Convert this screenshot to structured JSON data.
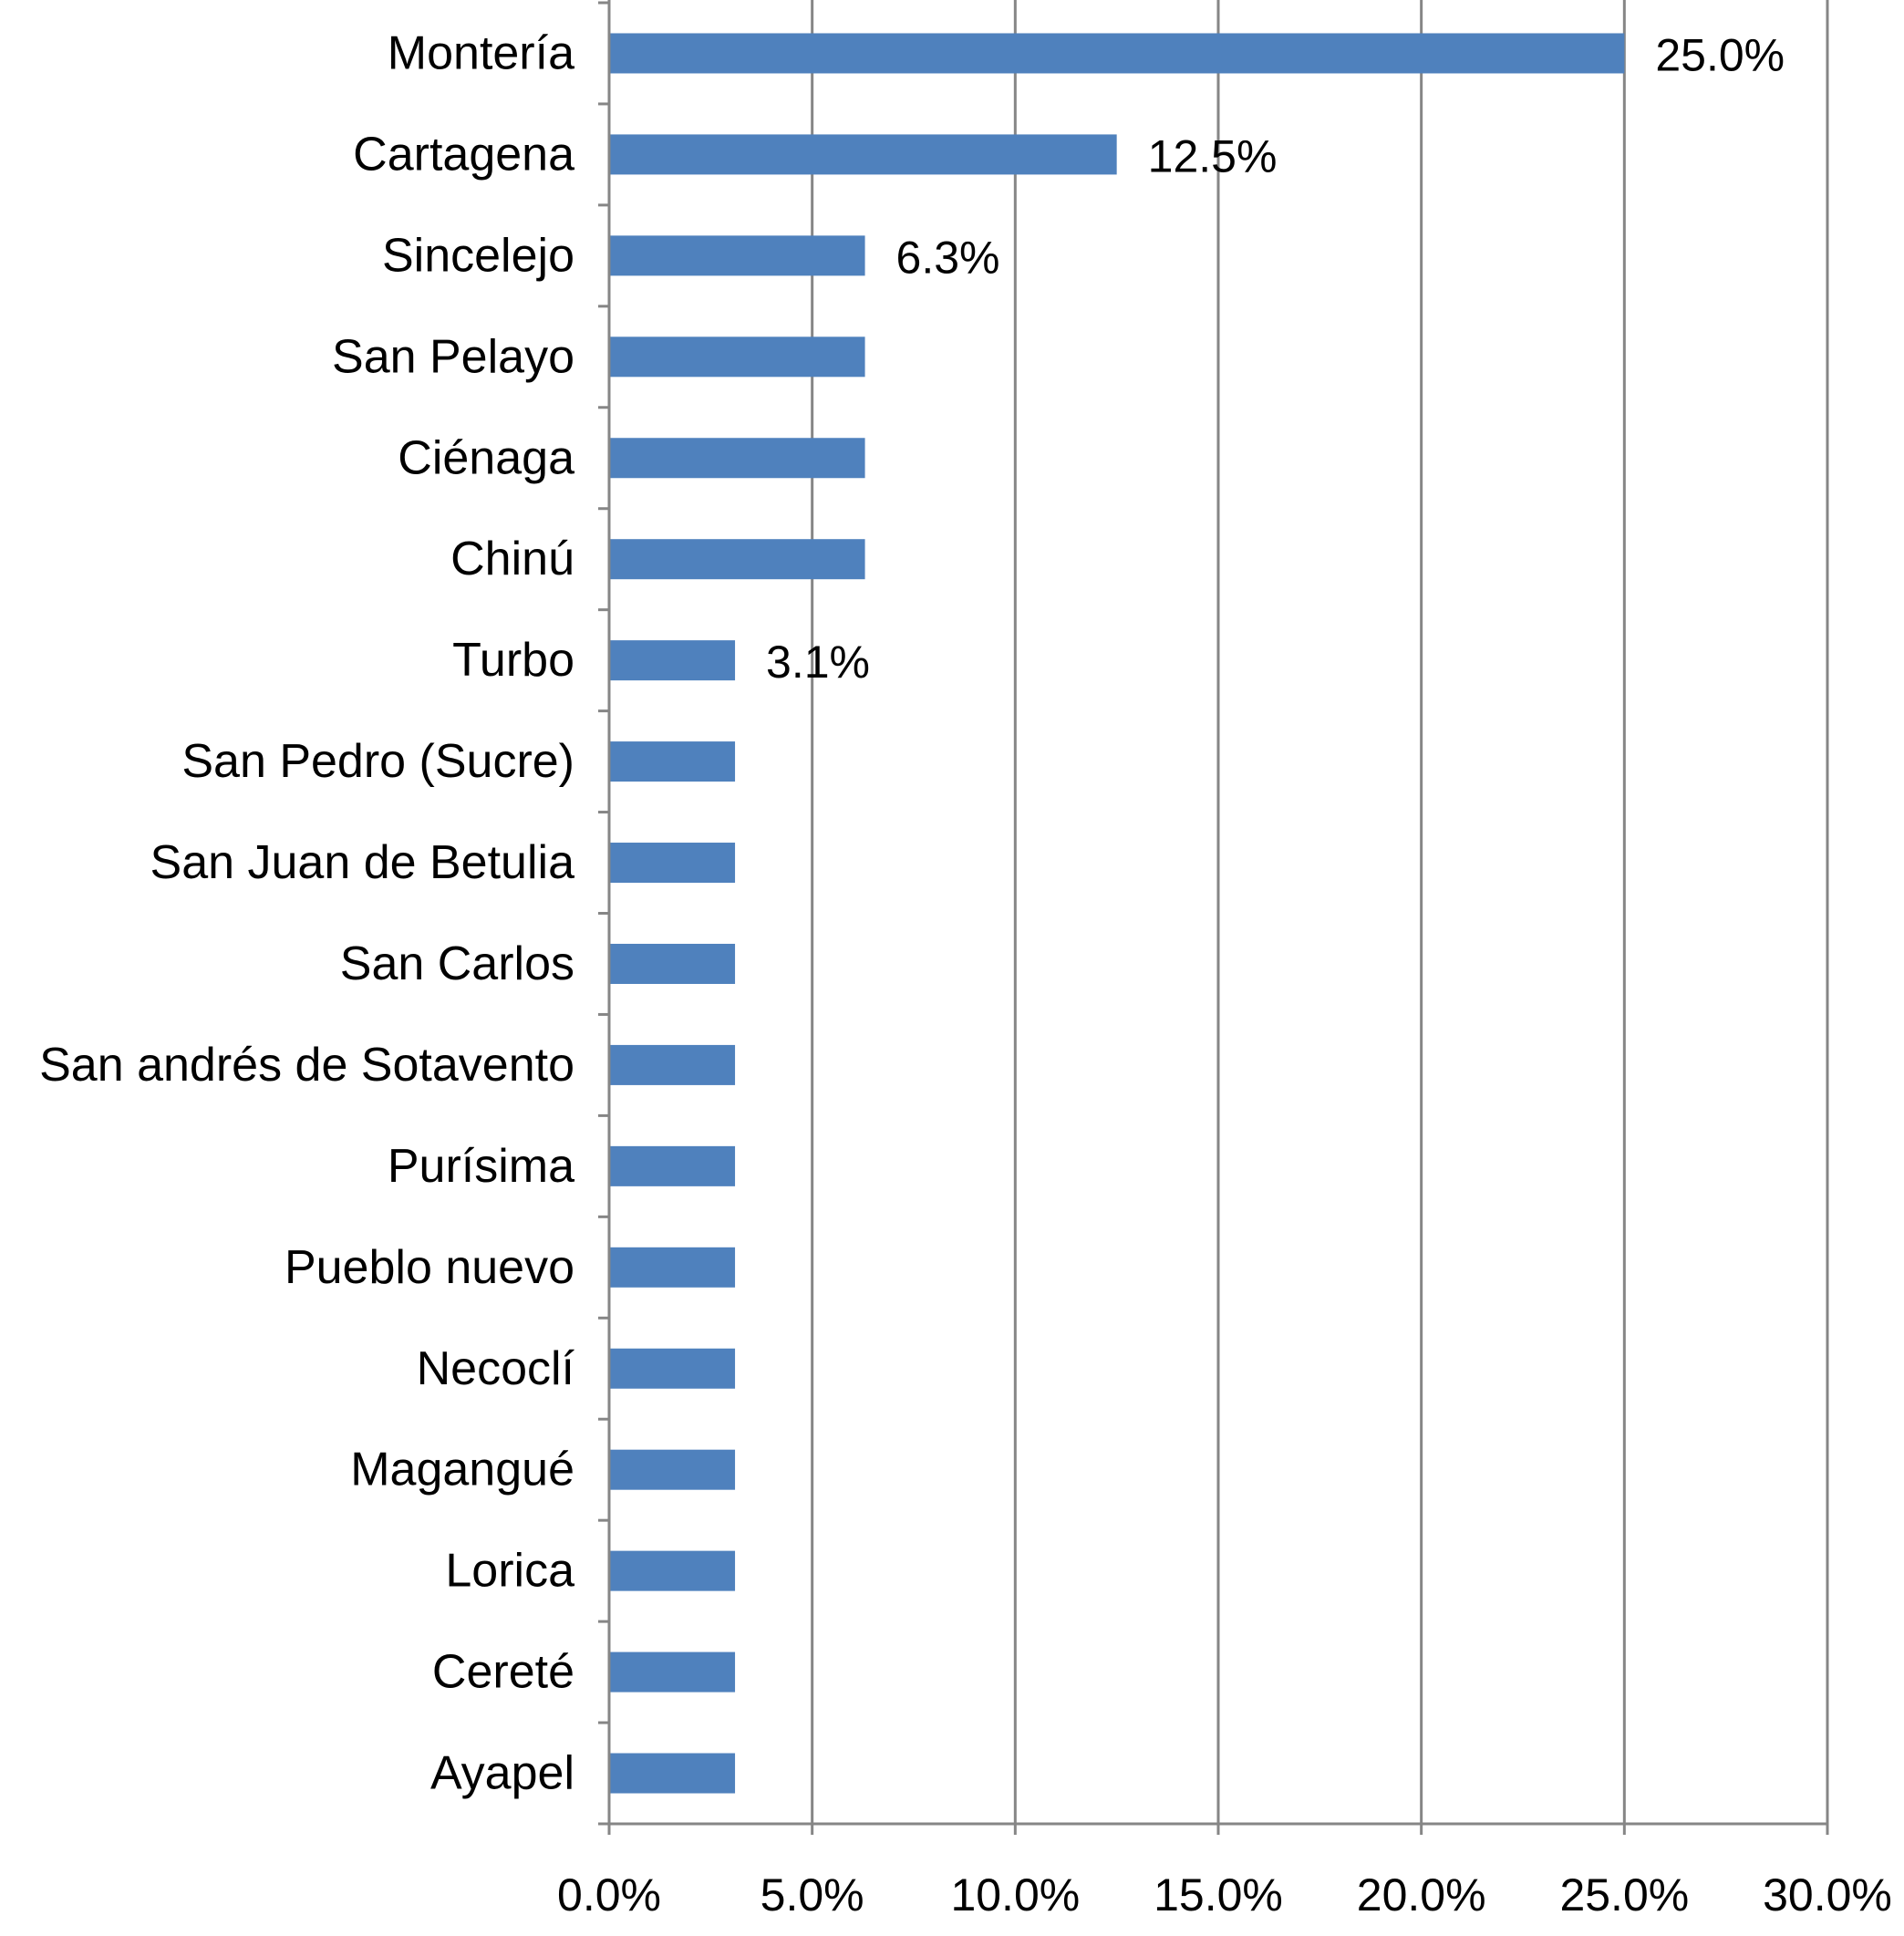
{
  "chart_data": {
    "type": "bar",
    "orientation": "horizontal",
    "categories": [
      "Montería",
      "Cartagena",
      "Sincelejo",
      "San Pelayo",
      "Ciénaga",
      "Chinú",
      "Turbo",
      "San Pedro (Sucre)",
      "San Juan de Betulia",
      "San Carlos",
      "San andrés de Sotavento",
      "Purísima",
      "Pueblo nuevo",
      "Necoclí",
      "Magangué",
      "Lorica",
      "Cereté",
      "Ayapel"
    ],
    "values": [
      25.0,
      12.5,
      6.3,
      6.3,
      6.3,
      6.3,
      3.1,
      3.1,
      3.1,
      3.1,
      3.1,
      3.1,
      3.1,
      3.1,
      3.1,
      3.1,
      3.1,
      3.1
    ],
    "data_labels": [
      "25.0%",
      "12.5%",
      "6.3%",
      "",
      "",
      "",
      "3.1%",
      "",
      "",
      "",
      "",
      "",
      "",
      "",
      "",
      "",
      "",
      ""
    ],
    "xticks": [
      "0.0%",
      "5.0%",
      "10.0%",
      "15.0%",
      "20.0%",
      "25.0%",
      "30.0%"
    ],
    "xlim": [
      0,
      30
    ],
    "title": "",
    "xlabel": "",
    "ylabel": "",
    "grid": "vertical",
    "legend": "none",
    "colors": {
      "bar": "#4F81BD",
      "grid": "#868686",
      "axis": "#868686",
      "text": "#000000"
    }
  }
}
